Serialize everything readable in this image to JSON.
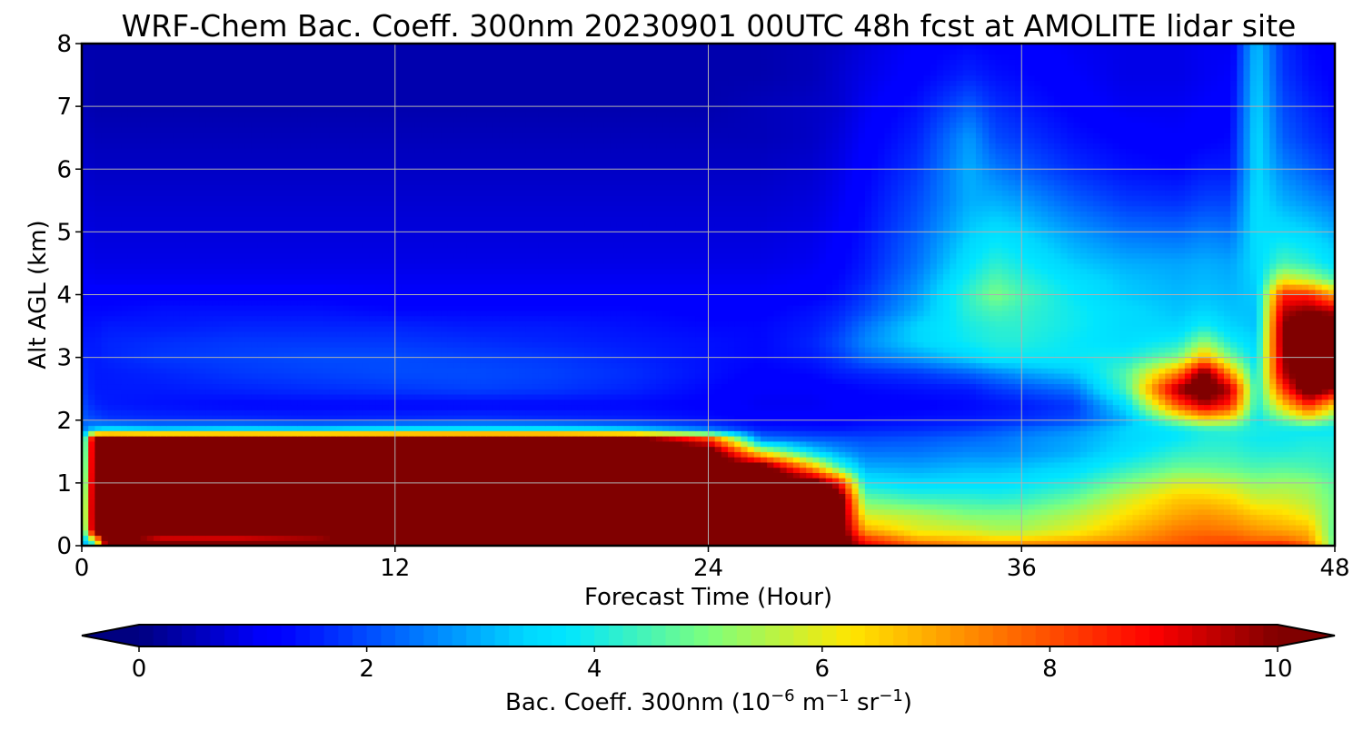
{
  "chart_data": {
    "type": "heatmap",
    "title": "WRF-Chem Bac. Coeff. 300nm  20230901 00UTC 48h fcst at AMOLITE lidar site",
    "xlabel": "Forecast Time (Hour)",
    "ylabel": "Alt AGL (km)",
    "xlim": [
      0,
      48
    ],
    "ylim": [
      0,
      8
    ],
    "x_ticks": [
      0,
      12,
      24,
      36,
      48
    ],
    "y_ticks": [
      0,
      1,
      2,
      3,
      4,
      5,
      6,
      7,
      8
    ],
    "grid": true,
    "colormap": "jet",
    "colorbar": {
      "label_main": "Bac. Coeff. 300nm  (10",
      "label_exp1": "−6",
      "label_mid": " m",
      "label_exp2": "−1",
      "label_mid2": " sr",
      "label_exp3": "−1",
      "label_end": ")",
      "ticks": [
        0,
        2,
        4,
        6,
        8,
        10
      ],
      "range": [
        0,
        10
      ],
      "extend": "both",
      "position": "bottom"
    },
    "x": [
      0,
      0.5,
      1,
      3,
      6,
      9,
      12,
      15,
      18,
      21,
      24,
      26,
      28,
      29,
      30,
      32,
      34,
      35,
      36,
      38,
      40,
      42,
      43,
      44,
      45,
      46,
      47,
      48
    ],
    "y": [
      0,
      0.1,
      0.25,
      0.5,
      0.75,
      1.0,
      1.25,
      1.5,
      1.7,
      1.85,
      2.0,
      2.25,
      2.5,
      2.75,
      3.0,
      3.25,
      3.5,
      3.75,
      4.0,
      4.25,
      4.5,
      5.0,
      5.5,
      6.0,
      6.5,
      7.0,
      7.5,
      8.0
    ],
    "values": [
      [
        2.5,
        4.0,
        11.0,
        11.0,
        11.0,
        11.0,
        11.0,
        11.0,
        11.0,
        11.0,
        11.0,
        11.0,
        11.0,
        11.0,
        9.0,
        8.0,
        7.5,
        7.5,
        7.6,
        7.8,
        8.0,
        8.0,
        8.0,
        8.2,
        8.6,
        8.7,
        8.0,
        4.5
      ],
      [
        3.0,
        6.0,
        11.0,
        9.0,
        9.0,
        9.5,
        11.0,
        11.0,
        11.0,
        11.0,
        11.0,
        11.0,
        11.0,
        11.0,
        8.5,
        7.0,
        6.7,
        6.5,
        6.5,
        6.8,
        7.2,
        7.8,
        8.0,
        8.0,
        7.7,
        7.7,
        7.2,
        4.7
      ],
      [
        3.5,
        11.0,
        11.0,
        11.0,
        11.0,
        11.0,
        11.0,
        11.0,
        11.0,
        11.0,
        11.0,
        11.0,
        11.0,
        11.0,
        7.0,
        6.0,
        5.8,
        5.5,
        5.5,
        6.0,
        6.8,
        7.5,
        7.6,
        7.5,
        7.2,
        7.0,
        6.8,
        4.6
      ],
      [
        3.8,
        11.0,
        11.0,
        11.0,
        11.0,
        11.0,
        11.0,
        11.0,
        11.0,
        11.0,
        11.0,
        11.0,
        11.0,
        11.0,
        5.8,
        5.5,
        5.0,
        5.0,
        5.0,
        5.5,
        6.3,
        7.0,
        7.2,
        7.0,
        6.6,
        6.4,
        6.0,
        4.8
      ],
      [
        3.6,
        11.0,
        11.0,
        11.0,
        11.0,
        11.0,
        11.0,
        11.0,
        11.0,
        11.0,
        11.0,
        11.0,
        11.0,
        11.0,
        4.8,
        4.4,
        4.3,
        4.2,
        4.3,
        4.8,
        5.8,
        6.6,
        6.6,
        6.4,
        5.8,
        5.8,
        5.5,
        4.8
      ],
      [
        3.3,
        11.0,
        11.0,
        11.0,
        11.0,
        11.0,
        11.0,
        11.0,
        11.0,
        11.0,
        11.0,
        11.0,
        11.0,
        9.0,
        3.8,
        3.5,
        3.6,
        3.6,
        3.7,
        4.1,
        5.0,
        5.8,
        5.8,
        5.6,
        5.2,
        5.3,
        5.2,
        4.6
      ],
      [
        3.0,
        11.0,
        11.0,
        11.0,
        11.0,
        11.0,
        11.0,
        11.0,
        11.0,
        11.0,
        11.0,
        11.0,
        7.0,
        4.5,
        3.0,
        2.9,
        3.1,
        3.1,
        3.2,
        3.5,
        4.2,
        4.8,
        4.8,
        4.7,
        4.5,
        4.6,
        4.5,
        4.3
      ],
      [
        2.8,
        11.0,
        11.0,
        11.0,
        11.0,
        11.0,
        11.0,
        11.0,
        11.0,
        11.0,
        11.0,
        6.0,
        3.5,
        2.8,
        2.4,
        2.4,
        2.6,
        2.6,
        2.7,
        3.0,
        3.6,
        4.2,
        4.3,
        4.3,
        4.1,
        4.1,
        4.2,
        4.1
      ],
      [
        2.6,
        11.0,
        11.0,
        11.0,
        11.0,
        11.0,
        11.0,
        11.0,
        11.0,
        11.0,
        8.5,
        2.6,
        2.2,
        2.1,
        2.0,
        2.1,
        2.3,
        2.4,
        2.6,
        2.9,
        3.4,
        3.8,
        4.1,
        4.1,
        3.9,
        3.9,
        4.0,
        4.0
      ],
      [
        2.4,
        3.5,
        3.8,
        3.5,
        3.7,
        3.6,
        3.9,
        4.0,
        4.0,
        3.5,
        2.6,
        1.6,
        1.5,
        1.5,
        1.6,
        1.7,
        1.9,
        2.1,
        2.3,
        2.7,
        3.4,
        3.8,
        4.1,
        4.2,
        4.0,
        3.9,
        3.8,
        3.8
      ],
      [
        2.2,
        2.0,
        1.8,
        1.7,
        1.7,
        1.6,
        1.7,
        1.8,
        1.7,
        1.6,
        1.4,
        1.2,
        1.2,
        1.2,
        1.3,
        1.4,
        1.5,
        1.6,
        1.7,
        2.0,
        3.0,
        5.2,
        6.2,
        5.8,
        3.8,
        4.6,
        5.6,
        4.5
      ],
      [
        2.0,
        1.6,
        1.5,
        1.4,
        1.3,
        1.3,
        1.3,
        1.3,
        1.3,
        1.3,
        1.2,
        1.0,
        1.0,
        1.1,
        1.2,
        1.2,
        1.3,
        1.4,
        1.5,
        1.8,
        3.6,
        8.0,
        9.5,
        8.5,
        4.0,
        6.5,
        8.5,
        6.5
      ],
      [
        1.8,
        1.5,
        1.5,
        1.5,
        1.6,
        1.7,
        1.8,
        1.9,
        1.8,
        1.6,
        1.3,
        1.1,
        1.1,
        1.2,
        1.3,
        1.4,
        1.5,
        1.8,
        2.0,
        2.4,
        4.5,
        9.8,
        11.0,
        9.5,
        4.0,
        8.2,
        11.0,
        9.8
      ],
      [
        1.7,
        1.5,
        1.5,
        1.6,
        1.8,
        1.9,
        2.0,
        2.0,
        1.9,
        1.7,
        1.4,
        1.2,
        1.3,
        1.5,
        1.6,
        1.8,
        2.2,
        2.5,
        2.8,
        3.2,
        4.6,
        7.5,
        10.5,
        7.2,
        3.8,
        9.5,
        11.0,
        11.0
      ],
      [
        1.6,
        1.5,
        1.6,
        1.8,
        1.9,
        2.0,
        2.0,
        1.9,
        1.8,
        1.6,
        1.4,
        1.3,
        1.5,
        1.8,
        2.3,
        2.8,
        3.4,
        3.8,
        3.8,
        3.8,
        4.0,
        5.0,
        7.0,
        5.0,
        3.6,
        9.8,
        11.0,
        11.0
      ],
      [
        1.5,
        1.5,
        1.6,
        1.7,
        1.8,
        1.8,
        1.8,
        1.7,
        1.6,
        1.5,
        1.4,
        1.3,
        1.6,
        2.0,
        2.6,
        3.4,
        3.9,
        4.1,
        4.1,
        3.8,
        3.6,
        4.0,
        5.2,
        4.0,
        3.4,
        10.0,
        11.0,
        11.0
      ],
      [
        1.4,
        1.4,
        1.5,
        1.5,
        1.6,
        1.6,
        1.6,
        1.5,
        1.5,
        1.4,
        1.3,
        1.3,
        1.5,
        1.8,
        2.4,
        3.4,
        4.0,
        4.2,
        4.2,
        3.9,
        3.5,
        3.4,
        4.0,
        3.4,
        3.2,
        10.0,
        11.0,
        11.0
      ],
      [
        1.3,
        1.3,
        1.3,
        1.4,
        1.4,
        1.4,
        1.3,
        1.3,
        1.3,
        1.3,
        1.2,
        1.2,
        1.4,
        1.6,
        2.0,
        3.0,
        4.2,
        4.5,
        4.3,
        3.9,
        3.5,
        3.2,
        3.4,
        3.2,
        3.2,
        9.5,
        10.0,
        9.5
      ],
      [
        1.2,
        1.2,
        1.2,
        1.2,
        1.2,
        1.2,
        1.1,
        1.1,
        1.1,
        1.1,
        1.1,
        1.1,
        1.2,
        1.4,
        1.8,
        2.8,
        4.3,
        5.0,
        4.5,
        3.8,
        3.3,
        3.1,
        3.2,
        3.1,
        3.3,
        8.5,
        8.5,
        7.0
      ],
      [
        1.1,
        1.0,
        1.0,
        1.0,
        1.0,
        1.0,
        1.0,
        1.0,
        1.0,
        1.0,
        1.0,
        1.0,
        1.1,
        1.3,
        1.6,
        2.6,
        4.0,
        4.6,
        4.2,
        3.6,
        3.2,
        3.0,
        3.1,
        3.0,
        3.4,
        6.0,
        5.5,
        4.5
      ],
      [
        1.0,
        0.9,
        0.9,
        0.9,
        0.9,
        0.9,
        0.9,
        0.9,
        0.9,
        0.9,
        0.9,
        0.9,
        1.0,
        1.2,
        1.5,
        2.4,
        3.7,
        4.2,
        3.9,
        3.3,
        3.0,
        2.9,
        3.0,
        2.9,
        3.5,
        4.5,
        4.2,
        3.6
      ],
      [
        0.9,
        0.8,
        0.8,
        0.8,
        0.8,
        0.8,
        0.8,
        0.8,
        0.8,
        0.8,
        0.8,
        0.8,
        0.9,
        1.1,
        1.4,
        2.2,
        3.3,
        3.6,
        3.4,
        2.8,
        2.4,
        2.3,
        2.5,
        2.4,
        3.6,
        3.6,
        3.4,
        3.0
      ],
      [
        0.8,
        0.7,
        0.7,
        0.7,
        0.7,
        0.7,
        0.7,
        0.7,
        0.7,
        0.7,
        0.7,
        0.7,
        0.8,
        1.0,
        1.3,
        2.0,
        3.0,
        3.0,
        2.8,
        2.2,
        1.8,
        1.7,
        1.9,
        1.9,
        3.6,
        3.0,
        2.7,
        2.4
      ],
      [
        0.7,
        0.6,
        0.6,
        0.6,
        0.6,
        0.6,
        0.6,
        0.6,
        0.6,
        0.6,
        0.6,
        0.6,
        0.7,
        0.9,
        1.2,
        1.8,
        3.0,
        2.5,
        2.2,
        1.7,
        1.4,
        1.3,
        1.5,
        1.5,
        3.5,
        2.6,
        2.2,
        1.8
      ],
      [
        0.6,
        0.5,
        0.5,
        0.5,
        0.5,
        0.5,
        0.5,
        0.5,
        0.5,
        0.5,
        0.5,
        0.5,
        0.6,
        0.8,
        1.1,
        1.6,
        2.8,
        2.0,
        1.8,
        1.4,
        1.2,
        1.1,
        1.2,
        1.3,
        3.5,
        2.2,
        1.8,
        1.5
      ],
      [
        0.5,
        0.4,
        0.4,
        0.4,
        0.4,
        0.4,
        0.4,
        0.4,
        0.4,
        0.4,
        0.4,
        0.5,
        0.6,
        0.7,
        1.0,
        1.4,
        2.2,
        1.7,
        1.5,
        1.2,
        1.0,
        1.0,
        1.1,
        1.2,
        3.4,
        2.0,
        1.6,
        1.3
      ],
      [
        0.5,
        0.4,
        0.4,
        0.4,
        0.4,
        0.4,
        0.4,
        0.4,
        0.4,
        0.4,
        0.4,
        0.4,
        0.5,
        0.7,
        0.9,
        1.2,
        1.6,
        1.4,
        1.3,
        1.1,
        0.9,
        0.9,
        1.0,
        1.1,
        3.3,
        1.8,
        1.4,
        1.2
      ],
      [
        0.4,
        0.4,
        0.4,
        0.4,
        0.4,
        0.4,
        0.4,
        0.4,
        0.4,
        0.4,
        0.4,
        0.4,
        0.5,
        0.6,
        0.8,
        1.1,
        1.3,
        1.2,
        1.2,
        1.0,
        0.9,
        0.9,
        1.0,
        1.0,
        3.2,
        1.7,
        1.3,
        1.1
      ]
    ]
  }
}
